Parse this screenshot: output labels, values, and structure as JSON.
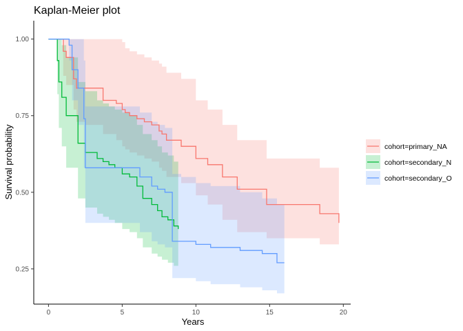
{
  "chart_data": {
    "type": "step-line",
    "title": "Kaplan-Meier plot",
    "xlabel": "Years",
    "ylabel": "Survival probability",
    "xlim": [
      -1.0,
      20.5
    ],
    "ylim": [
      0.135,
      1.06
    ],
    "xticks": [
      0,
      5,
      10,
      15,
      20
    ],
    "yticks": [
      0.25,
      0.5,
      0.75,
      1.0
    ],
    "ytick_labels": [
      "0.25",
      "0.50",
      "0.75",
      "1.00"
    ],
    "grid": false,
    "legend_position": "right",
    "series": [
      {
        "name": "cohort=primary_NA",
        "color": "#F8766D",
        "band_color": "#F8766D",
        "x": [
          0,
          1.0,
          1.2,
          1.7,
          1.9,
          2.5,
          3.7,
          4.6,
          5.0,
          5.2,
          5.5,
          6.0,
          6.5,
          7.0,
          7.5,
          7.7,
          8.0,
          9.0,
          10.0,
          10.8,
          11.8,
          12.8,
          14.8,
          18.4,
          19.7
        ],
        "y": [
          1.0,
          0.96,
          0.94,
          0.87,
          0.84,
          0.84,
          0.8,
          0.79,
          0.77,
          0.76,
          0.75,
          0.74,
          0.73,
          0.72,
          0.7,
          0.69,
          0.67,
          0.65,
          0.61,
          0.59,
          0.55,
          0.51,
          0.46,
          0.43,
          0.4
        ],
        "upper": [
          1.0,
          1.0,
          1.0,
          1.0,
          1.0,
          1.0,
          1.0,
          1.0,
          0.99,
          0.97,
          0.96,
          0.95,
          0.94,
          0.93,
          0.92,
          0.91,
          0.89,
          0.87,
          0.8,
          0.77,
          0.72,
          0.67,
          0.61,
          0.58,
          0.58
        ],
        "lower": [
          1.0,
          0.88,
          0.85,
          0.77,
          0.73,
          0.72,
          0.69,
          0.67,
          0.65,
          0.64,
          0.63,
          0.62,
          0.61,
          0.6,
          0.58,
          0.57,
          0.55,
          0.53,
          0.49,
          0.46,
          0.41,
          0.37,
          0.35,
          0.33,
          0.33
        ]
      },
      {
        "name": "cohort=secondary_N",
        "color": "#00BA38",
        "band_color": "#00BA38",
        "x": [
          0,
          0.6,
          0.7,
          0.9,
          1.2,
          2.0,
          2.5,
          3.3,
          3.7,
          4.1,
          4.5,
          5.0,
          5.5,
          6.0,
          6.4,
          7.0,
          7.4,
          7.7,
          8.1,
          8.5,
          8.8
        ],
        "y": [
          1.0,
          0.93,
          0.86,
          0.81,
          0.75,
          0.66,
          0.63,
          0.61,
          0.6,
          0.59,
          0.58,
          0.56,
          0.55,
          0.52,
          0.48,
          0.46,
          0.44,
          0.42,
          0.41,
          0.39,
          0.38
        ],
        "upper": [
          1.0,
          1.0,
          1.0,
          0.98,
          0.94,
          0.86,
          0.83,
          0.8,
          0.79,
          0.78,
          0.77,
          0.76,
          0.75,
          0.72,
          0.69,
          0.67,
          0.65,
          0.63,
          0.62,
          0.6,
          0.6
        ],
        "lower": [
          1.0,
          0.82,
          0.71,
          0.65,
          0.58,
          0.48,
          0.45,
          0.43,
          0.42,
          0.41,
          0.4,
          0.38,
          0.37,
          0.35,
          0.32,
          0.3,
          0.29,
          0.28,
          0.27,
          0.26,
          0.26
        ]
      },
      {
        "name": "cohort=secondary_O",
        "color": "#619CFF",
        "band_color": "#619CFF",
        "x": [
          0,
          1.4,
          1.6,
          2.0,
          2.4,
          2.5,
          3.5,
          6.2,
          7.0,
          7.4,
          7.9,
          8.4,
          9.0,
          10.0,
          11.0,
          13.0,
          14.5,
          15.5,
          16.0
        ],
        "y": [
          1.0,
          0.98,
          0.9,
          0.84,
          0.74,
          0.58,
          0.58,
          0.55,
          0.52,
          0.51,
          0.5,
          0.34,
          0.34,
          0.33,
          0.32,
          0.31,
          0.3,
          0.27,
          0.27
        ],
        "upper": [
          1.0,
          1.0,
          1.0,
          1.0,
          0.93,
          0.78,
          0.78,
          0.76,
          0.73,
          0.72,
          0.71,
          0.56,
          0.55,
          0.53,
          0.52,
          0.5,
          0.48,
          0.46,
          0.46
        ],
        "lower": [
          1.0,
          0.93,
          0.8,
          0.72,
          0.58,
          0.4,
          0.4,
          0.37,
          0.34,
          0.33,
          0.32,
          0.22,
          0.22,
          0.21,
          0.2,
          0.19,
          0.18,
          0.17,
          0.17
        ]
      }
    ]
  }
}
